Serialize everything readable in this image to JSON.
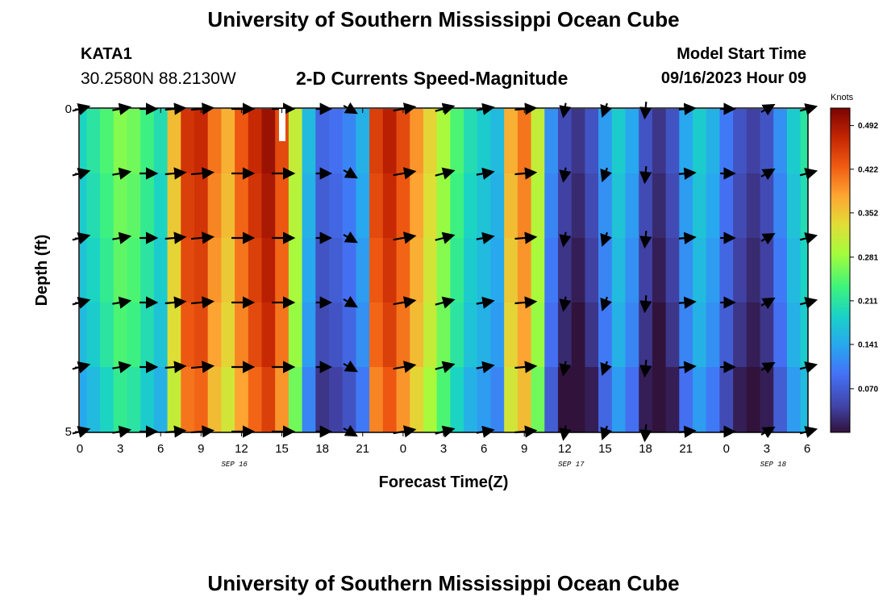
{
  "header": {
    "title": "University of Southern Mississippi Ocean Cube",
    "station_id": "KATA1",
    "coordinates": "30.2580N  88.2130W",
    "chart_subtitle": "2-D Currents Speed-Magnitude",
    "model_start_label": "Model Start Time",
    "model_start_value": "09/16/2023 Hour 09"
  },
  "footer": {
    "title": "University of Southern Mississippi Ocean Cube"
  },
  "chart_data": {
    "type": "heatmap",
    "title": "2-D Currents Speed-Magnitude",
    "xlabel": "Forecast Time(Z)",
    "ylabel": "Depth (ft)",
    "x_ticks": [
      "0",
      "3",
      "6",
      "9",
      "12",
      "15",
      "18",
      "21",
      "0",
      "3",
      "6",
      "9",
      "12",
      "15",
      "18",
      "21",
      "0",
      "3",
      "6"
    ],
    "x_range_hours": [
      0,
      54
    ],
    "date_labels": [
      {
        "text": "SEP 16",
        "hour": 11
      },
      {
        "text": "SEP 17",
        "hour": 36
      },
      {
        "text": "SEP 18",
        "hour": 51
      }
    ],
    "y_ticks": [
      "0",
      "5"
    ],
    "y_range_ft": [
      0,
      5
    ],
    "colorbar": {
      "label": "Knots",
      "ticks": [
        "0.492",
        "0.422",
        "0.352",
        "0.281",
        "0.211",
        "0.141",
        "0.070"
      ],
      "range": [
        0,
        0.52
      ]
    },
    "colors": {
      "low": "#30123b",
      "high": "#7a0403",
      "arrow": "#000000"
    },
    "speed_by_hour": [
      0.18,
      0.2,
      0.23,
      0.26,
      0.25,
      0.22,
      0.19,
      0.35,
      0.45,
      0.46,
      0.4,
      0.36,
      0.42,
      0.46,
      0.49,
      0.43,
      0.3,
      0.15,
      0.07,
      0.08,
      0.1,
      0.14,
      0.44,
      0.47,
      0.43,
      0.38,
      0.33,
      0.28,
      0.23,
      0.19,
      0.17,
      0.15,
      0.36,
      0.4,
      0.3,
      0.11,
      0.04,
      0.02,
      0.05,
      0.12,
      0.17,
      0.13,
      0.05,
      0.02,
      0.05,
      0.13,
      0.17,
      0.14,
      0.09,
      0.05,
      0.03,
      0.05,
      0.11,
      0.17,
      0.2
    ],
    "depth_variation_ft": [
      0,
      1,
      2,
      3,
      4,
      5
    ],
    "depth_speed_offsets": [
      0.01,
      0.0,
      -0.01,
      -0.02,
      -0.04,
      -0.06
    ],
    "vectors_depths_ft": [
      0,
      1,
      2,
      3,
      4,
      5
    ],
    "vectors_hours": [
      0,
      3,
      5,
      7,
      9,
      12,
      15,
      18,
      20,
      24,
      27,
      30,
      33,
      36,
      39,
      42,
      45,
      48,
      51,
      54
    ],
    "vector_dirs_deg": [
      15,
      10,
      0,
      5,
      5,
      0,
      0,
      0,
      330,
      10,
      15,
      10,
      5,
      -100,
      -110,
      -95,
      5,
      0,
      30,
      15
    ],
    "vector_speed": [
      0.2,
      0.24,
      0.2,
      0.35,
      0.45,
      0.45,
      0.45,
      0.08,
      0.09,
      0.45,
      0.3,
      0.2,
      0.4,
      0.04,
      0.03,
      0.16,
      0.15,
      0.05,
      0.08,
      0.18
    ]
  }
}
